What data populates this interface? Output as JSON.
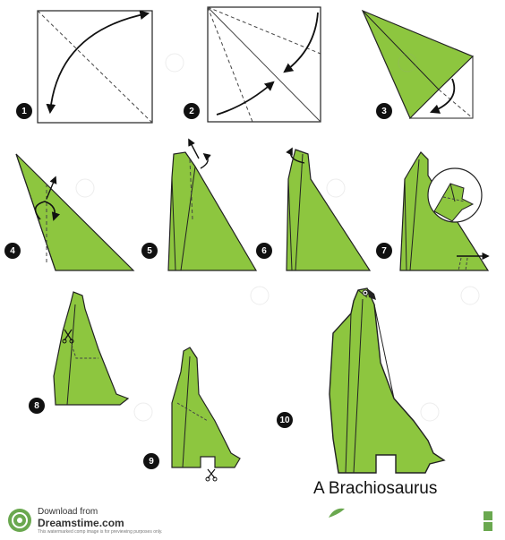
{
  "steps": [
    {
      "number": "1"
    },
    {
      "number": "2"
    },
    {
      "number": "3"
    },
    {
      "number": "4"
    },
    {
      "number": "5"
    },
    {
      "number": "6"
    },
    {
      "number": "7"
    },
    {
      "number": "8"
    },
    {
      "number": "9"
    },
    {
      "number": "10"
    }
  ],
  "caption": "A Brachiosaurus",
  "footer": {
    "line1": "Download from",
    "line2": "Dreamstime.com",
    "line3": "This watermarked comp image is for previewing purposes only."
  },
  "colors": {
    "paper_green": "#8dc63f",
    "paper_light": "#a8d65a",
    "line": "#222222",
    "dash": "#444444",
    "step_badge": "#111111"
  },
  "icons": [
    "curved-arrow-icon",
    "scissors-icon",
    "eye-icon",
    "dreamstime-logo-icon"
  ]
}
